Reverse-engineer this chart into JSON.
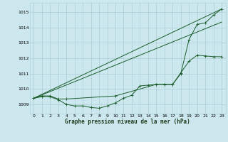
{
  "title": "Graphe pression niveau de la mer (hPa)",
  "bg_color": "#cce8ee",
  "grid_color": "#aacdd5",
  "line_color": "#1a5c2a",
  "xlim": [
    -0.5,
    23.5
  ],
  "ylim": [
    1008.4,
    1015.6
  ],
  "xticks": [
    0,
    1,
    2,
    3,
    4,
    5,
    6,
    7,
    8,
    9,
    10,
    11,
    12,
    13,
    14,
    15,
    16,
    17,
    18,
    19,
    20,
    21,
    22,
    23
  ],
  "yticks": [
    1009,
    1010,
    1011,
    1012,
    1013,
    1014,
    1015
  ],
  "series": [
    {
      "x": [
        0,
        1,
        2,
        3,
        4,
        5,
        6,
        7,
        8,
        9,
        10,
        11,
        12,
        13,
        14,
        15,
        16,
        17,
        18,
        19,
        20,
        21,
        22,
        23
      ],
      "y": [
        1009.4,
        1009.5,
        1009.5,
        1009.3,
        1009.0,
        1008.9,
        1008.9,
        1008.8,
        1008.75,
        1008.9,
        1009.1,
        1009.4,
        1009.6,
        1010.2,
        1010.25,
        1010.3,
        1010.3,
        1010.3,
        1011.05,
        1011.8,
        1012.2,
        1012.15,
        1012.1,
        1012.1
      ]
    },
    {
      "x": [
        0,
        23
      ],
      "y": [
        1009.4,
        1015.2
      ]
    },
    {
      "x": [
        0,
        23
      ],
      "y": [
        1009.4,
        1014.35
      ]
    },
    {
      "x": [
        0,
        1,
        2,
        3,
        4,
        10,
        15,
        16,
        17,
        18,
        19,
        20,
        21,
        22,
        23
      ],
      "y": [
        1009.4,
        1009.55,
        1009.55,
        1009.35,
        1009.35,
        1009.55,
        1010.3,
        1010.3,
        1010.3,
        1011.0,
        1013.2,
        1014.2,
        1014.3,
        1014.8,
        1015.2
      ]
    }
  ]
}
